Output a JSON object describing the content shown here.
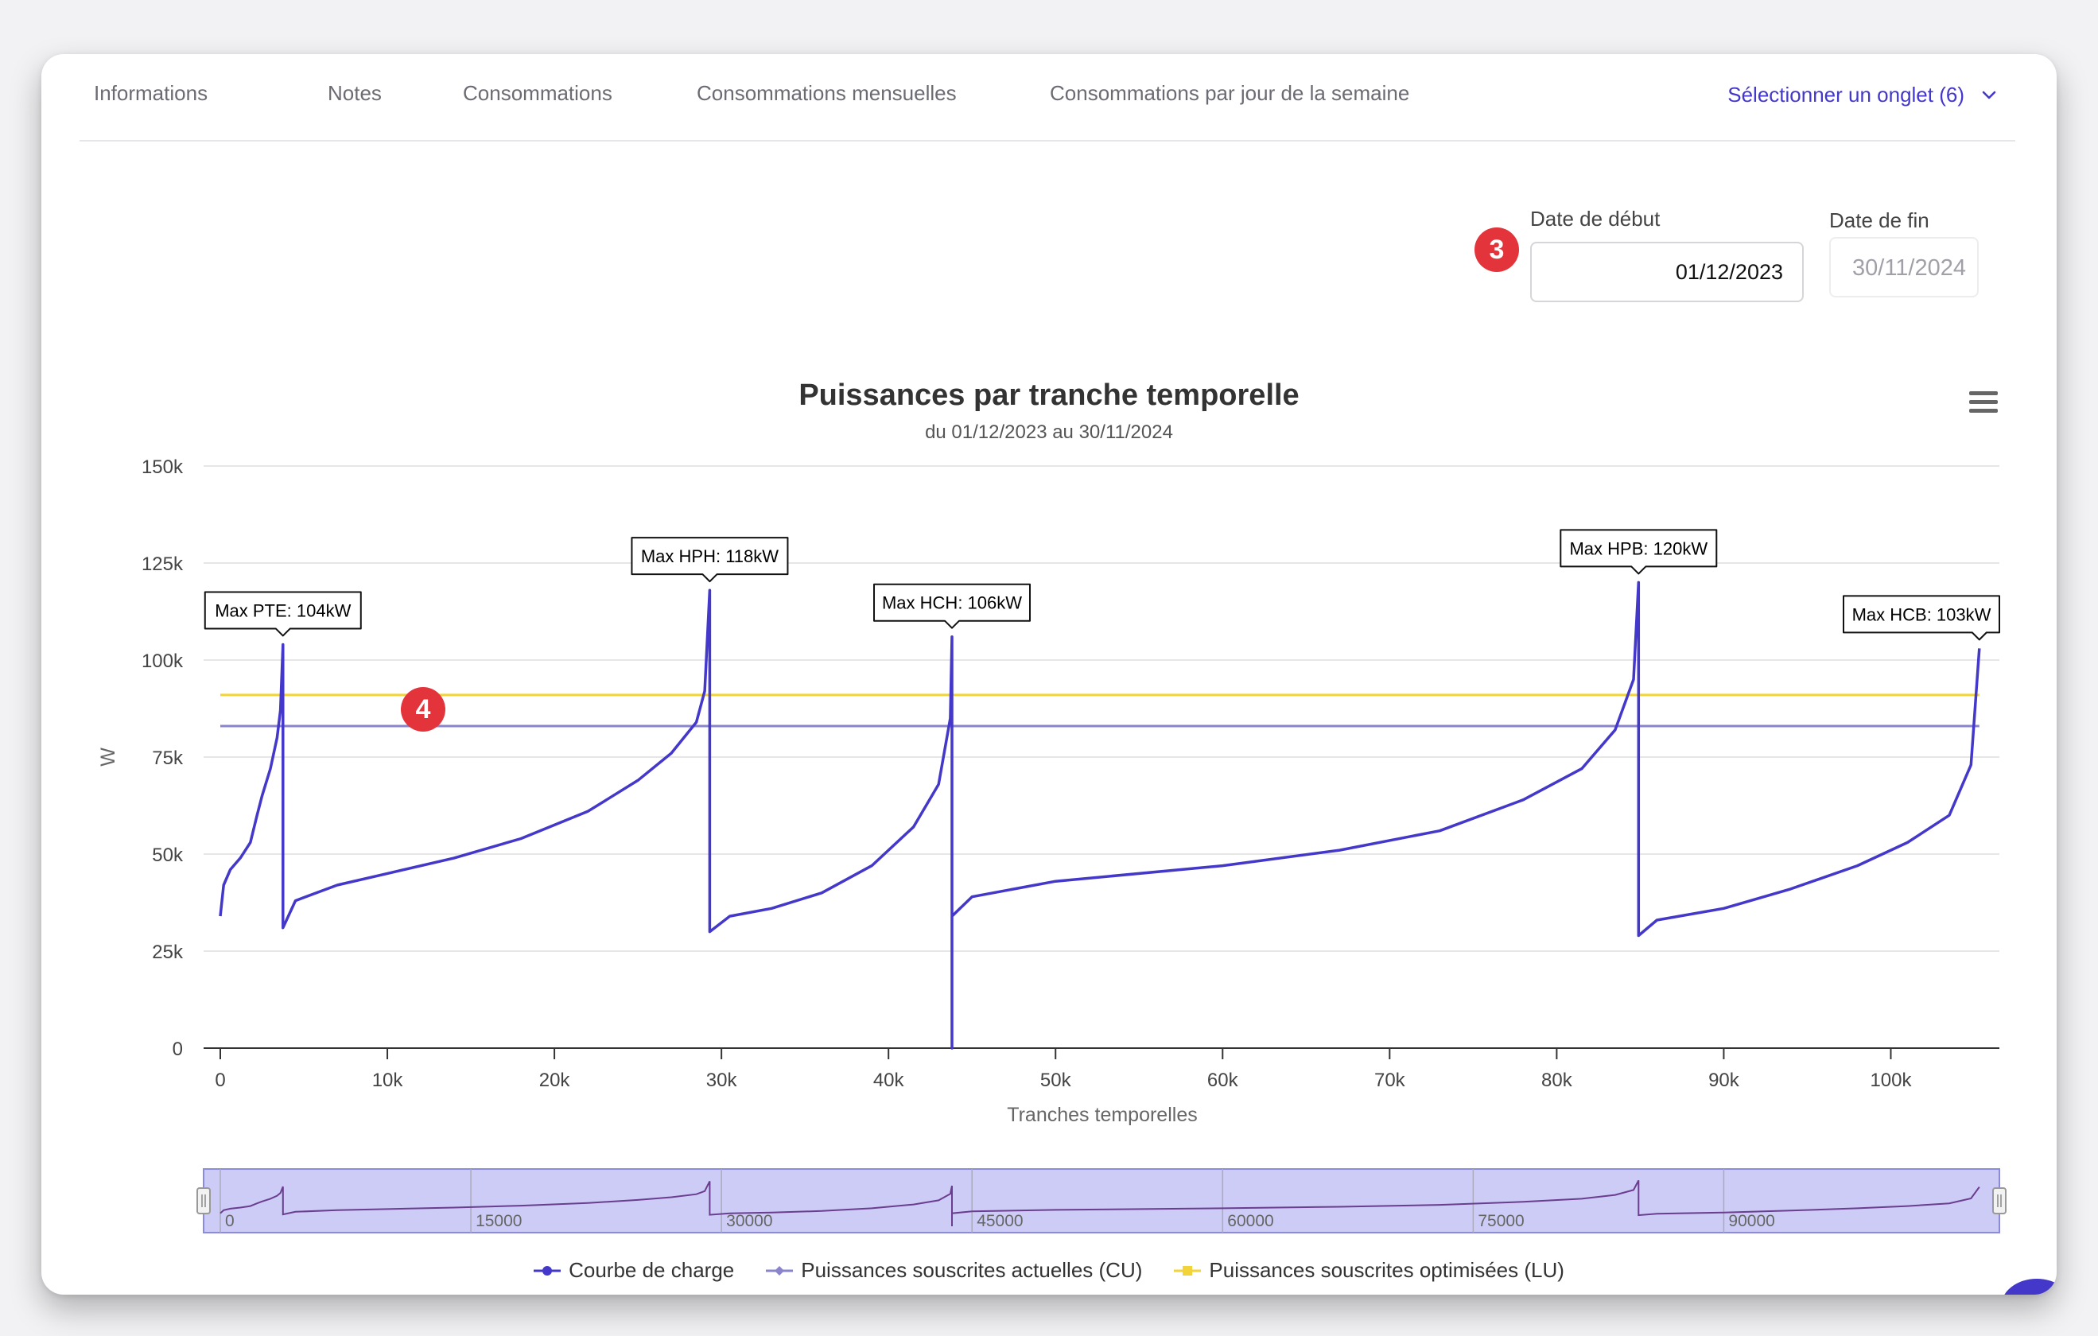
{
  "tabs": [
    {
      "label": "Informations"
    },
    {
      "label": "Notes"
    },
    {
      "label": "Consommations"
    },
    {
      "label": "Consommations mensuelles"
    },
    {
      "label": "Consommations par jour de la semaine"
    }
  ],
  "tab_select": {
    "label": "Sélectionner un onglet (6)",
    "icon": "chevron-down-icon"
  },
  "filters": {
    "start": {
      "label": "Date de début",
      "value": "01/12/2023"
    },
    "end": {
      "label": "Date de fin",
      "value": "30/11/2024"
    }
  },
  "badges": {
    "b3": "3",
    "b4": "4"
  },
  "colors": {
    "load_curve": "#4338ca",
    "cu": "#8a84cc",
    "lu": "#f2d43a",
    "navigator_fill": "#ccccf6",
    "badge": "#e3343c"
  },
  "chart_data": {
    "type": "line",
    "title": "Puissances par tranche temporelle",
    "subtitle": "du 01/12/2023 au 30/11/2024",
    "xlabel": "Tranches temporelles",
    "ylabel": "W",
    "xlim": [
      -1000,
      106500
    ],
    "ylim": [
      0,
      150000
    ],
    "x_ticks": [
      "0",
      "10k",
      "20k",
      "30k",
      "40k",
      "50k",
      "60k",
      "70k",
      "80k",
      "90k",
      "100k"
    ],
    "y_ticks": [
      "0",
      "25k",
      "50k",
      "75k",
      "100k",
      "125k",
      "150k"
    ],
    "grid": true,
    "legend_position": "bottom",
    "series": [
      {
        "name": "Courbe de charge",
        "color": "#4338ca",
        "segments": [
          {
            "x": [
              0,
              200,
              600,
              1200,
              1800,
              2200,
              2500,
              3000,
              3400,
              3600,
              3750
            ],
            "y": [
              34000,
              42000,
              46000,
              49000,
              53000,
              60000,
              65000,
              72000,
              80000,
              87000,
              104000
            ]
          },
          {
            "x": [
              3750,
              4500,
              7000,
              10000,
              14000,
              18000,
              22000,
              25000,
              27000,
              28500,
              29000,
              29300
            ],
            "y": [
              31000,
              38000,
              42000,
              45000,
              49000,
              54000,
              61000,
              69000,
              76000,
              84000,
              92000,
              118000
            ]
          },
          {
            "x": [
              29300,
              30500,
              33000,
              36000,
              39000,
              41500,
              43000,
              43700,
              43800
            ],
            "y": [
              30000,
              34000,
              36000,
              40000,
              47000,
              57000,
              68000,
              85000,
              106000
            ]
          },
          {
            "x": [
              43800,
              43800,
              45000,
              50000,
              60000,
              67000,
              73000,
              78000,
              81500,
              83500,
              84600,
              84900
            ],
            "y": [
              0,
              34000,
              39000,
              43000,
              47000,
              51000,
              56000,
              64000,
              72000,
              82000,
              95000,
              120000
            ]
          },
          {
            "x": [
              84900,
              86000,
              90000,
              94000,
              98000,
              101000,
              103500,
              104800,
              105300
            ],
            "y": [
              29000,
              33000,
              36000,
              41000,
              47000,
              53000,
              60000,
              73000,
              103000
            ]
          }
        ]
      },
      {
        "name": "Puissances souscrites actuelles (CU)",
        "color": "#8a84cc",
        "x": [
          0,
          105300
        ],
        "y": [
          83000,
          83000
        ]
      },
      {
        "name": "Puissances souscrites optimisées (LU)",
        "color": "#f2d43a",
        "x": [
          0,
          105300
        ],
        "y": [
          91000,
          91000
        ]
      }
    ],
    "annotations": [
      {
        "text": "Max PTE: 104kW",
        "x": 3750,
        "y": 104000
      },
      {
        "text": "Max HPH: 118kW",
        "x": 29300,
        "y": 118000
      },
      {
        "text": "Max HCH: 106kW",
        "x": 43800,
        "y": 106000
      },
      {
        "text": "Max HPB: 120kW",
        "x": 84900,
        "y": 120000
      },
      {
        "text": "Max HCB: 103kW",
        "x": 105300,
        "y": 103000
      }
    ],
    "navigator": {
      "ticks": [
        "0",
        "15000",
        "30000",
        "45000",
        "60000",
        "75000",
        "90000"
      ],
      "tick_values": [
        0,
        15000,
        30000,
        45000,
        60000,
        75000,
        90000
      ]
    }
  }
}
